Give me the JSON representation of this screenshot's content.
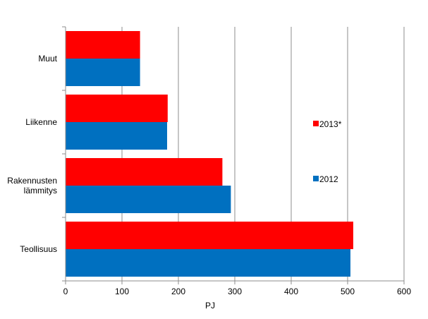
{
  "chart_data": {
    "type": "bar",
    "orientation": "horizontal",
    "categories": [
      {
        "label_lines": [
          "Muut"
        ]
      },
      {
        "label_lines": [
          "Liikenne"
        ]
      },
      {
        "label_lines": [
          "Rakennusten",
          "lämmitys"
        ]
      },
      {
        "label_lines": [
          "Teollisuus"
        ]
      }
    ],
    "series": [
      {
        "name": "2013*",
        "color": "#ff0000",
        "values": [
          132,
          181,
          278,
          510
        ]
      },
      {
        "name": "2012",
        "color": "#0070c0",
        "values": [
          132,
          180,
          293,
          505
        ]
      }
    ],
    "xlabel": "PJ",
    "xlim": [
      0,
      600
    ],
    "xticks": [
      "0",
      "100",
      "200",
      "300",
      "400",
      "500",
      "600"
    ],
    "grid": "vertical",
    "legend_position": "right"
  }
}
